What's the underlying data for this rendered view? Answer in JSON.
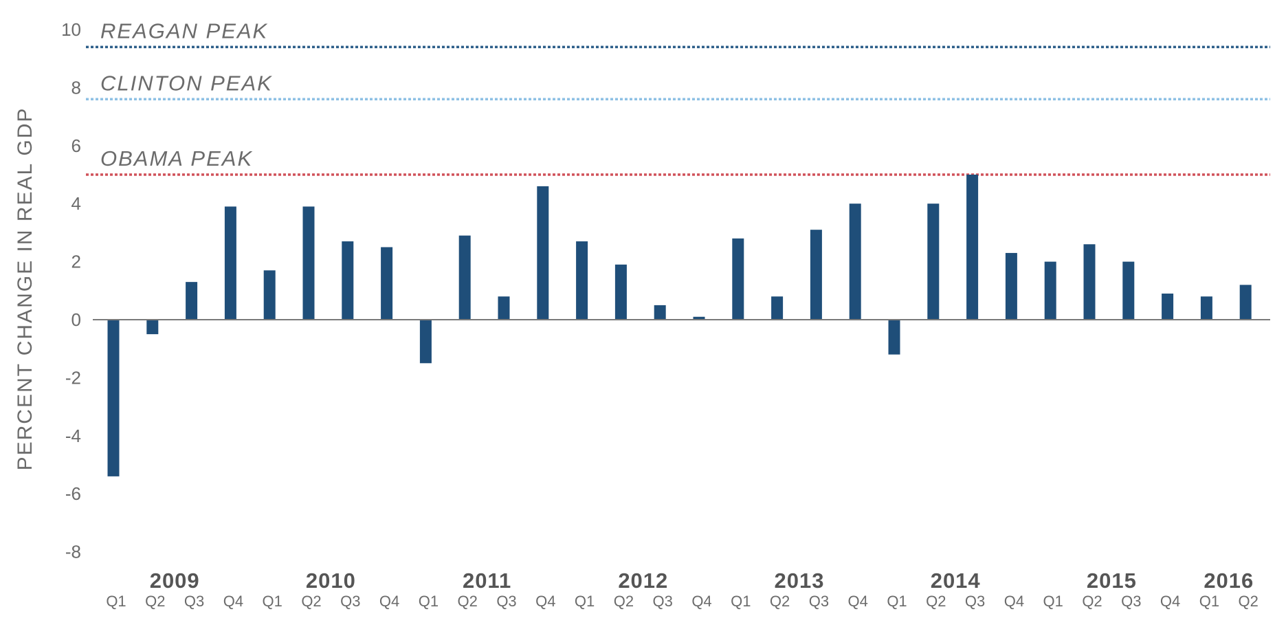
{
  "chart_data": {
    "type": "bar",
    "ylabel": "PERCENT CHANGE IN REAL GDP",
    "xlabel": "",
    "ylim": [
      -8,
      10
    ],
    "yticks": [
      10,
      8,
      6,
      4,
      2,
      0,
      -2,
      -4,
      -6,
      -8
    ],
    "grid": false,
    "bar_color": "#1f4e79",
    "categories": [
      "2009 Q1",
      "2009 Q2",
      "2009 Q3",
      "2009 Q4",
      "2010 Q1",
      "2010 Q2",
      "2010 Q3",
      "2010 Q4",
      "2011 Q1",
      "2011 Q2",
      "2011 Q3",
      "2011 Q4",
      "2012 Q1",
      "2012 Q2",
      "2012 Q3",
      "2012 Q4",
      "2013 Q1",
      "2013 Q2",
      "2013 Q3",
      "2013 Q4",
      "2014 Q1",
      "2014 Q2",
      "2014 Q3",
      "2014 Q4",
      "2015 Q1",
      "2015 Q2",
      "2015 Q3",
      "2015 Q4",
      "2016 Q1",
      "2016 Q2"
    ],
    "quarter_labels": [
      "Q1",
      "Q2",
      "Q3",
      "Q4",
      "Q1",
      "Q2",
      "Q3",
      "Q4",
      "Q1",
      "Q2",
      "Q3",
      "Q4",
      "Q1",
      "Q2",
      "Q3",
      "Q4",
      "Q1",
      "Q2",
      "Q3",
      "Q4",
      "Q1",
      "Q2",
      "Q3",
      "Q4",
      "Q1",
      "Q2",
      "Q3",
      "Q4",
      "Q1",
      "Q2"
    ],
    "year_labels": [
      {
        "label": "2009",
        "between": [
          1,
          2
        ]
      },
      {
        "label": "2010",
        "between": [
          5,
          6
        ]
      },
      {
        "label": "2011",
        "between": [
          9,
          10
        ]
      },
      {
        "label": "2012",
        "between": [
          13,
          14
        ]
      },
      {
        "label": "2013",
        "between": [
          17,
          18
        ]
      },
      {
        "label": "2014",
        "between": [
          21,
          22
        ]
      },
      {
        "label": "2015",
        "between": [
          25,
          26
        ]
      },
      {
        "label": "2016",
        "between": [
          28,
          29
        ]
      }
    ],
    "values": [
      -5.4,
      -0.5,
      1.3,
      3.9,
      1.7,
      3.9,
      2.7,
      2.5,
      -1.5,
      2.9,
      0.8,
      4.6,
      2.7,
      1.9,
      0.5,
      0.1,
      2.8,
      0.8,
      3.1,
      4.0,
      -1.2,
      4.0,
      5.0,
      2.3,
      2.0,
      2.6,
      2.0,
      0.9,
      0.8,
      1.2
    ],
    "reference_lines": [
      {
        "label": "REAGAN PEAK",
        "value": 9.4,
        "color": "#2e5f8a"
      },
      {
        "label": "CLINTON PEAK",
        "value": 7.6,
        "color": "#8ec0e4"
      },
      {
        "label": "OBAMA PEAK",
        "value": 5.0,
        "color": "#d0525a"
      }
    ]
  }
}
